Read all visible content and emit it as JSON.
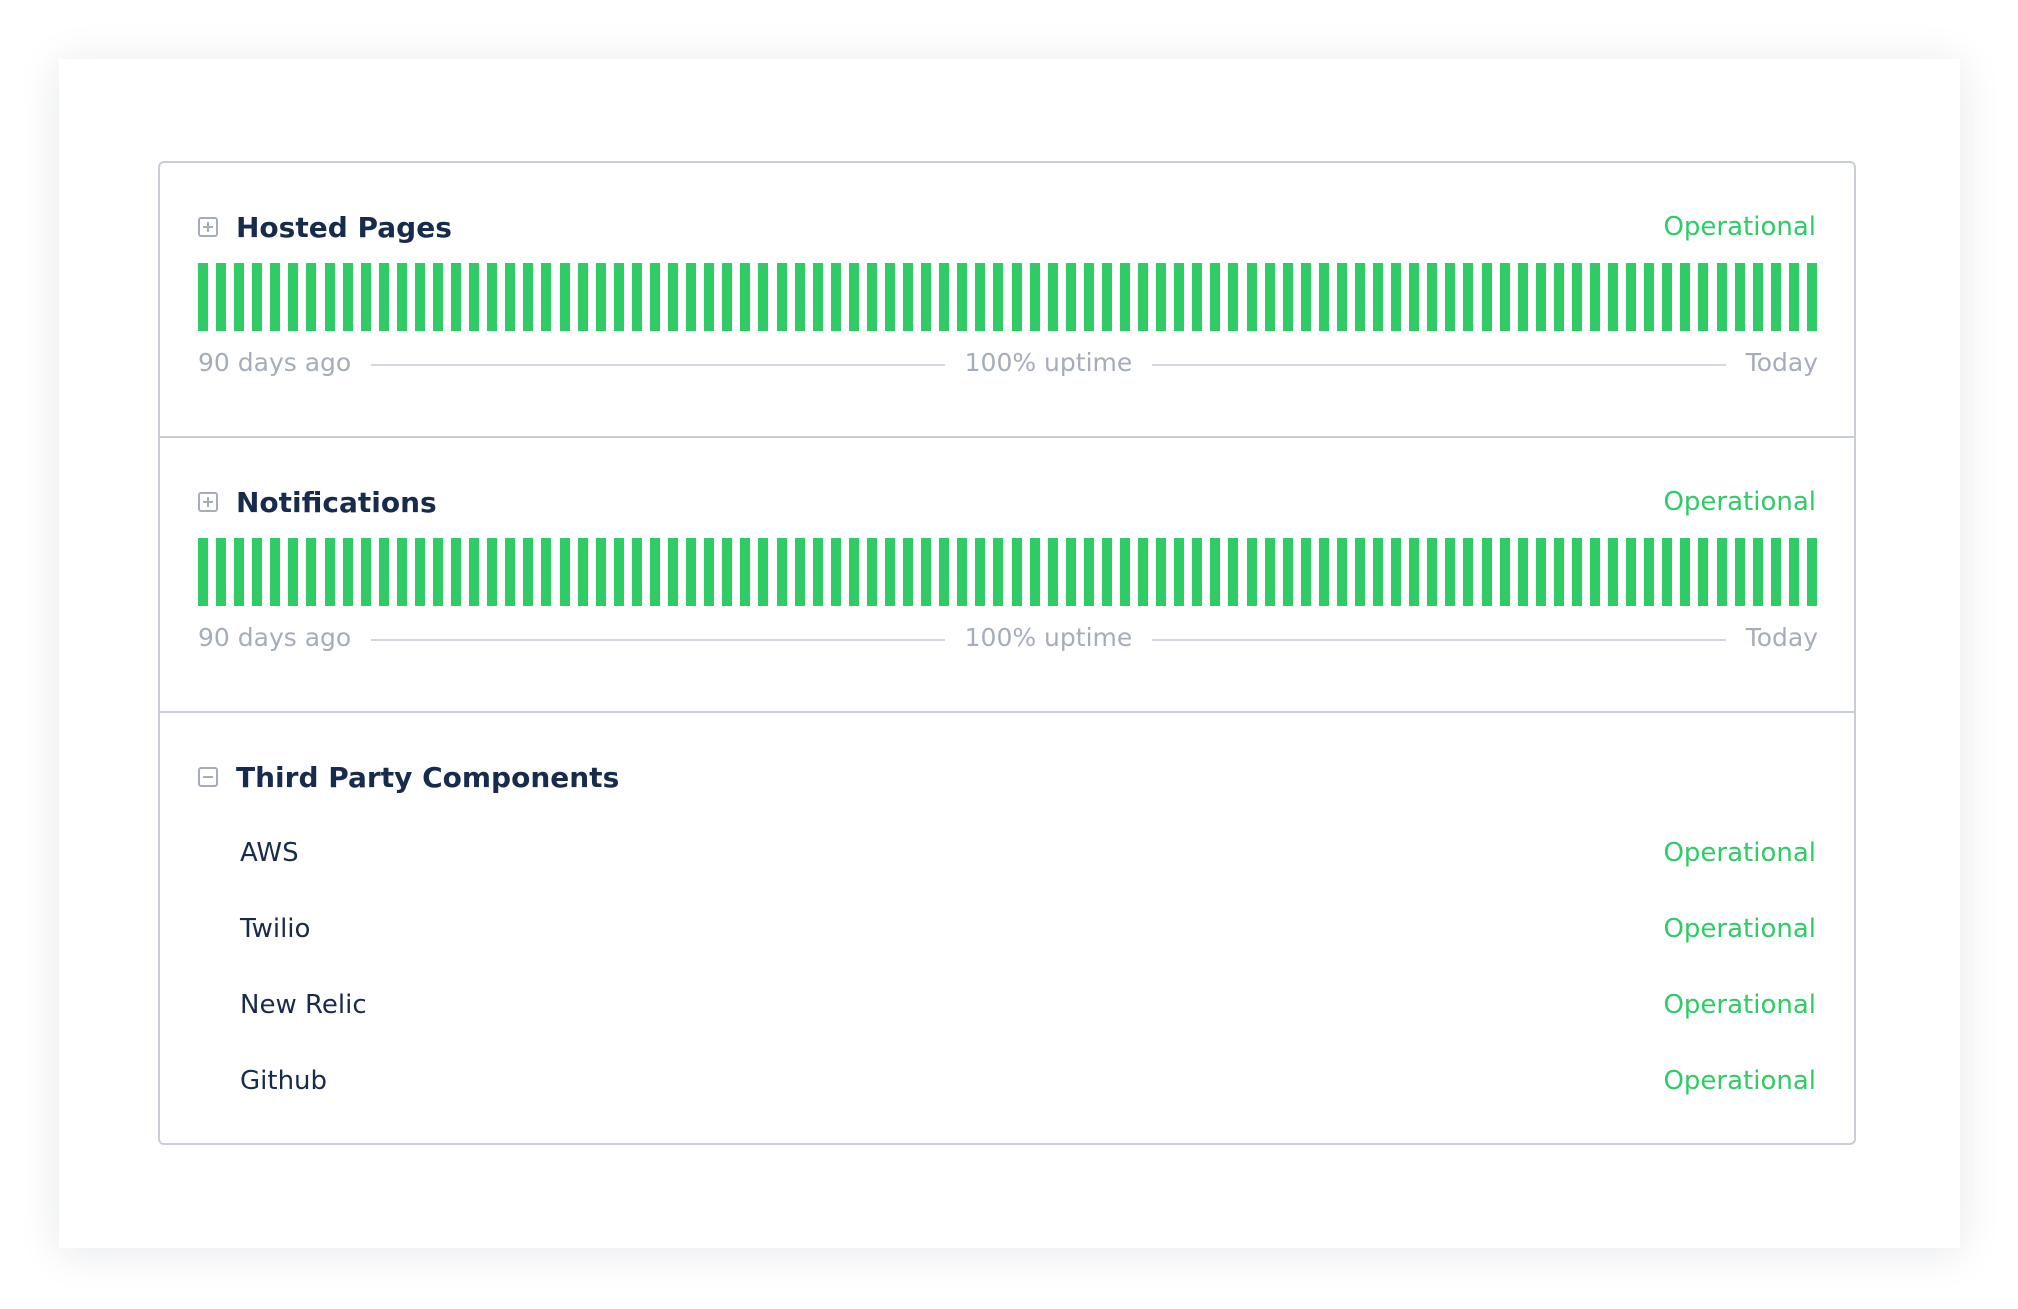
{
  "colors": {
    "operational": "#2fcc66",
    "title": "#172b4d",
    "muted": "#a5adba"
  },
  "components": [
    {
      "name": "Hosted Pages",
      "status": "Operational",
      "expanded": false,
      "toggle_icon": "plus-square-icon",
      "bars": 90,
      "bar_status": "operational",
      "start_label": "90 days ago",
      "uptime_label": "100% uptime",
      "end_label": "Today"
    },
    {
      "name": "Notifications",
      "status": "Operational",
      "expanded": false,
      "toggle_icon": "plus-square-icon",
      "bars": 90,
      "bar_status": "operational",
      "start_label": "90 days ago",
      "uptime_label": "100% uptime",
      "end_label": "Today"
    }
  ],
  "group": {
    "name": "Third Party Components",
    "expanded": true,
    "toggle_icon": "minus-square-icon",
    "items": [
      {
        "name": "AWS",
        "status": "Operational"
      },
      {
        "name": "Twilio",
        "status": "Operational"
      },
      {
        "name": "New Relic",
        "status": "Operational"
      },
      {
        "name": "Github",
        "status": "Operational"
      }
    ]
  }
}
